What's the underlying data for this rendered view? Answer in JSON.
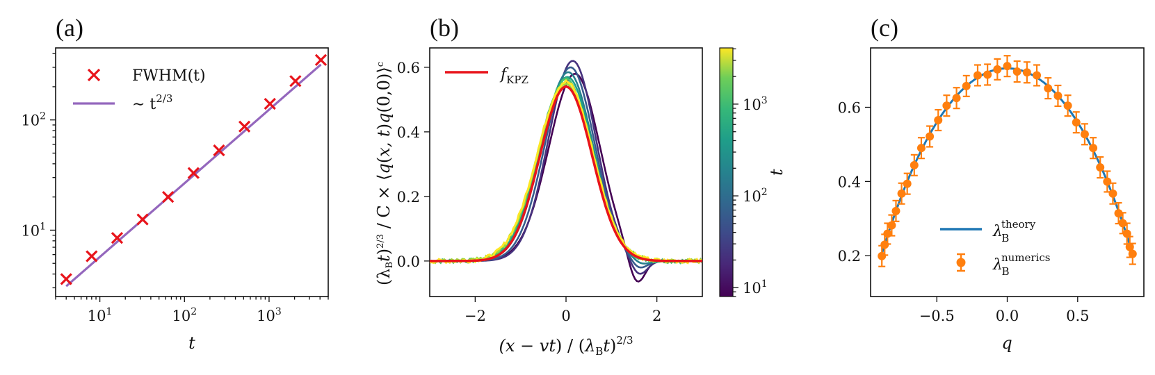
{
  "chart_data": [
    {
      "panel": "(a)",
      "type": "scatter",
      "xlabel": "t",
      "ylabel": "",
      "xscale": "log",
      "yscale": "log",
      "xlim": [
        3,
        5000
      ],
      "ylim": [
        2.5,
        450
      ],
      "xticks": [
        {
          "v": 10,
          "base": "10",
          "exp": "1"
        },
        {
          "v": 100,
          "base": "10",
          "exp": "2"
        },
        {
          "v": 1000,
          "base": "10",
          "exp": "3"
        }
      ],
      "yticks": [
        {
          "v": 10,
          "base": "10",
          "exp": "1"
        },
        {
          "v": 100,
          "base": "10",
          "exp": "2"
        }
      ],
      "legend_position": "top-left",
      "series": [
        {
          "name": "FWHM(t)",
          "marker": "x",
          "color": "#e8141b",
          "x": [
            4,
            8,
            16,
            32,
            64,
            128,
            256,
            512,
            1024,
            2048,
            4096
          ],
          "y": [
            3.6,
            5.8,
            8.5,
            12.5,
            20,
            33,
            53,
            87,
            140,
            225,
            350
          ]
        },
        {
          "name": "~ t^{2/3}",
          "style": "line",
          "color": "#9467bd",
          "x": [
            4,
            4096
          ],
          "y": [
            3.1,
            318
          ]
        }
      ]
    },
    {
      "panel": "(b)",
      "type": "line",
      "xlabel": "(x − vt) / (λ_B t)^{2/3}",
      "ylabel": "(λ_B t)^{2/3}/C × ⟨q(x,t) q(0,0)⟩^c",
      "xlim": [
        -3,
        3
      ],
      "ylim": [
        -0.11,
        0.66
      ],
      "xticks": [
        "−2",
        "0",
        "2"
      ],
      "yticks": [
        "0.0",
        "0.2",
        "0.4",
        "0.6"
      ],
      "legend_position": "top-left",
      "colorbar": {
        "label": "t",
        "scale": "log",
        "range": [
          8,
          4096
        ],
        "ticks": [
          {
            "v": 10,
            "base": "10",
            "exp": "1"
          },
          {
            "v": 100,
            "base": "10",
            "exp": "2"
          },
          {
            "v": 1000,
            "base": "10",
            "exp": "3"
          }
        ],
        "colormap": "viridis"
      },
      "series": [
        {
          "name": "f_KPZ",
          "color": "#e8141b",
          "amplitude": 0.54,
          "width": 0.64
        },
        {
          "t": 8,
          "color": "#440154",
          "peak": 0.58,
          "mu": 0.2,
          "sigma": 0.58,
          "dip": 0.09,
          "dip_x": 1.55
        },
        {
          "t": 16,
          "color": "#46327e",
          "peak": 0.62,
          "mu": 0.15,
          "sigma": 0.54,
          "dip": 0.05,
          "dip_x": 1.6
        },
        {
          "t": 32,
          "color": "#365c8d",
          "peak": 0.6,
          "mu": 0.1,
          "sigma": 0.56,
          "dip": 0.03,
          "dip_x": 1.6
        },
        {
          "t": 64,
          "color": "#277f8e",
          "peak": 0.585,
          "mu": 0.05,
          "sigma": 0.58,
          "dip": 0.015,
          "dip_x": 1.65
        },
        {
          "t": 128,
          "color": "#1fa187",
          "peak": 0.57,
          "mu": 0.03,
          "sigma": 0.6,
          "dip": 0.0,
          "dip_x": 1.7
        },
        {
          "t": 256,
          "color": "#4ac16d",
          "peak": 0.56,
          "mu": 0.0,
          "sigma": 0.61,
          "dip": 0.0,
          "dip_x": 1.7
        },
        {
          "t": 512,
          "color": "#a0da39",
          "peak": 0.55,
          "mu": 0.0,
          "sigma": 0.62,
          "dip": 0.0,
          "dip_x": 1.7
        },
        {
          "t": 1024,
          "color": "#fde725",
          "peak": 0.555,
          "mu": 0.0,
          "sigma": 0.625,
          "dip": 0.0,
          "dip_x": 1.7
        }
      ],
      "legend_entries": [
        "f_KPZ"
      ]
    },
    {
      "panel": "(c)",
      "type": "scatter",
      "xlabel": "q",
      "ylabel": "",
      "xlim": [
        -0.97,
        0.97
      ],
      "ylim": [
        0.09,
        0.76
      ],
      "xticks": [
        -0.5,
        0.0,
        0.5
      ],
      "yticks": [
        0.2,
        0.4,
        0.6
      ],
      "xtick_labels": [
        "−0.5",
        "0.0",
        "0.5"
      ],
      "ytick_labels": [
        "0.2",
        "0.4",
        "0.6"
      ],
      "legend_position": "lower-center",
      "theory": {
        "name": "λ_B^theory",
        "color": "#1f77b4",
        "formula": "0.7·sqrt(1−q²)·(something)"
      },
      "numerics": {
        "name": "λ_B^numerics",
        "color": "#ff7f0e",
        "q": [
          -0.89,
          -0.87,
          -0.85,
          -0.82,
          -0.79,
          -0.75,
          -0.71,
          -0.66,
          -0.61,
          -0.55,
          -0.49,
          -0.43,
          -0.36,
          -0.29,
          -0.21,
          -0.14,
          -0.07,
          0.0,
          0.07,
          0.14,
          0.21,
          0.29,
          0.36,
          0.43,
          0.49,
          0.55,
          0.61,
          0.66,
          0.71,
          0.75,
          0.79,
          0.82,
          0.85,
          0.87,
          0.89
        ],
        "yerr": 0.028
      }
    }
  ],
  "labels": {
    "a": "(a)",
    "b": "(b)",
    "c": "(c)",
    "fwhm_legend": "FWHM(t)",
    "power_legend": "∼ t",
    "power_exp": "2/3",
    "kpz_legend": "f",
    "kpz_sub": "KPZ",
    "theory_main": "λ",
    "theory_sub": "B",
    "theory_sup": "theory",
    "numerics_main": "λ",
    "numerics_sub": "B",
    "numerics_sup": "numerics",
    "colorbar_label": "t",
    "a_xlabel": "t",
    "c_xlabel": "q"
  }
}
